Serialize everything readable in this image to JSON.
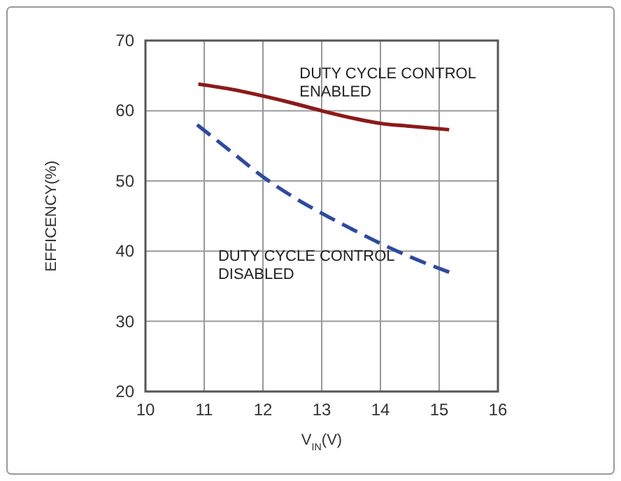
{
  "chart_data": {
    "type": "line",
    "xlabel": "V$_{IN}$(V)",
    "ylabel": "EFFICENCY(%)",
    "xlim": [
      10,
      16
    ],
    "xticks": [
      10,
      11,
      12,
      13,
      14,
      15,
      16
    ],
    "ylim": [
      20,
      70
    ],
    "yticks": [
      20,
      30,
      40,
      50,
      60,
      70
    ],
    "grid": true,
    "series": [
      {
        "name": "DUTY CYCLE CONTROL\nENABLED",
        "color": "#8b1a1a",
        "line_style": "solid",
        "x": [
          10.9,
          11.5,
          12,
          12.5,
          13,
          13.5,
          14,
          14.5,
          15.17
        ],
        "values": [
          63.8,
          63.0,
          62.1,
          61.1,
          60.0,
          59.0,
          58.2,
          57.8,
          57.3
        ]
      },
      {
        "name": "DUTY CYCLE CONTROL\nDISABLED",
        "color": "#2e4a9e",
        "line_style": "dashed",
        "x": [
          10.88,
          11.5,
          12,
          12.5,
          13,
          13.5,
          14,
          14.5,
          15.17
        ],
        "values": [
          58.0,
          53.9,
          50.6,
          47.8,
          45.4,
          43.2,
          41.1,
          39.2,
          37.0
        ]
      }
    ]
  }
}
